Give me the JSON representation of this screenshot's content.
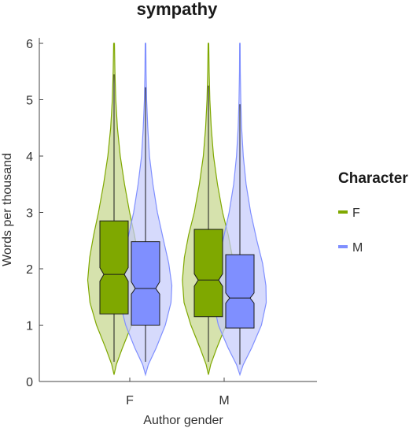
{
  "chart_data": {
    "type": "violin",
    "title": "sympathy",
    "xlabel": "Author gender",
    "ylabel": "Words per thousand",
    "categories": [
      "F",
      "M"
    ],
    "ylim": [
      0,
      6
    ],
    "yticks": [
      0,
      1,
      2,
      3,
      4,
      5,
      6
    ],
    "legend": {
      "title": "Character",
      "position": "right"
    },
    "series": [
      {
        "name": "F",
        "color": "#7fa800",
        "fill": "#c4d68a",
        "groups": [
          {
            "category": "F",
            "whisker_low": 0.35,
            "q1": 1.2,
            "median": 1.9,
            "q3": 2.85,
            "whisker_high": 5.45,
            "notch_low": 1.78,
            "notch_high": 2.02,
            "density": [
              [
                0.12,
                0.0
              ],
              [
                0.3,
                0.08
              ],
              [
                0.6,
                0.3
              ],
              [
                1.0,
                0.62
              ],
              [
                1.4,
                0.85
              ],
              [
                1.8,
                0.93
              ],
              [
                2.2,
                0.86
              ],
              [
                2.6,
                0.72
              ],
              [
                3.0,
                0.55
              ],
              [
                3.5,
                0.37
              ],
              [
                4.0,
                0.22
              ],
              [
                4.5,
                0.12
              ],
              [
                5.0,
                0.06
              ],
              [
                5.5,
                0.03
              ],
              [
                6.0,
                0.015
              ]
            ]
          },
          {
            "category": "M",
            "whisker_low": 0.35,
            "q1": 1.15,
            "median": 1.8,
            "q3": 2.7,
            "whisker_high": 5.25,
            "notch_low": 1.69,
            "notch_high": 1.91,
            "density": [
              [
                0.12,
                0.0
              ],
              [
                0.3,
                0.08
              ],
              [
                0.6,
                0.3
              ],
              [
                1.0,
                0.62
              ],
              [
                1.4,
                0.86
              ],
              [
                1.8,
                0.92
              ],
              [
                2.2,
                0.85
              ],
              [
                2.6,
                0.7
              ],
              [
                3.0,
                0.5
              ],
              [
                3.5,
                0.32
              ],
              [
                4.0,
                0.18
              ],
              [
                4.5,
                0.1
              ],
              [
                5.0,
                0.05
              ],
              [
                5.5,
                0.025
              ],
              [
                6.0,
                0.012
              ]
            ]
          }
        ]
      },
      {
        "name": "M",
        "color": "#7f8fff",
        "fill": "#c5cbfb",
        "groups": [
          {
            "category": "F",
            "whisker_low": 0.35,
            "q1": 1.0,
            "median": 1.65,
            "q3": 2.48,
            "whisker_high": 5.22,
            "notch_low": 1.55,
            "notch_high": 1.77,
            "density": [
              [
                0.12,
                0.0
              ],
              [
                0.3,
                0.1
              ],
              [
                0.6,
                0.38
              ],
              [
                1.0,
                0.7
              ],
              [
                1.4,
                0.9
              ],
              [
                1.7,
                0.93
              ],
              [
                2.1,
                0.82
              ],
              [
                2.5,
                0.64
              ],
              [
                3.0,
                0.42
              ],
              [
                3.5,
                0.26
              ],
              [
                4.0,
                0.14
              ],
              [
                4.5,
                0.08
              ],
              [
                5.0,
                0.04
              ],
              [
                5.5,
                0.02
              ],
              [
                6.0,
                0.01
              ]
            ]
          },
          {
            "category": "M",
            "whisker_low": 0.3,
            "q1": 0.95,
            "median": 1.48,
            "q3": 2.25,
            "whisker_high": 4.92,
            "notch_low": 1.39,
            "notch_high": 1.57,
            "density": [
              [
                0.12,
                0.0
              ],
              [
                0.3,
                0.12
              ],
              [
                0.6,
                0.42
              ],
              [
                1.0,
                0.76
              ],
              [
                1.4,
                0.93
              ],
              [
                1.7,
                0.92
              ],
              [
                2.1,
                0.8
              ],
              [
                2.5,
                0.6
              ],
              [
                3.0,
                0.38
              ],
              [
                3.5,
                0.22
              ],
              [
                4.0,
                0.12
              ],
              [
                4.5,
                0.06
              ],
              [
                5.0,
                0.03
              ],
              [
                5.5,
                0.015
              ],
              [
                6.0,
                0.008
              ]
            ]
          }
        ]
      }
    ]
  }
}
